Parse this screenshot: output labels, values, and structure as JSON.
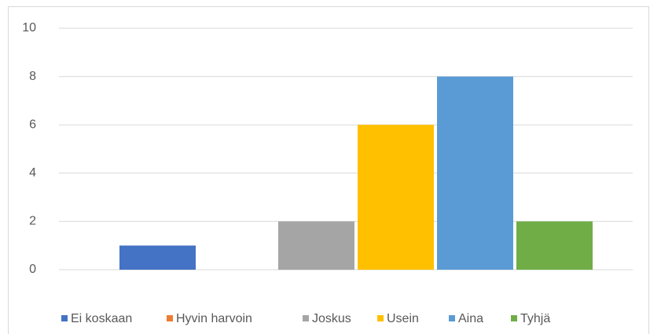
{
  "chart_data": {
    "type": "bar",
    "series": [
      {
        "name": "Ei koskaan",
        "color": "#4472c4",
        "values": [
          1
        ]
      },
      {
        "name": "Hyvin harvoin",
        "color": "#ed7d31",
        "values": [
          0
        ]
      },
      {
        "name": "Joskus",
        "color": "#a5a5a5",
        "values": [
          2
        ]
      },
      {
        "name": "Usein",
        "color": "#ffc000",
        "values": [
          6
        ]
      },
      {
        "name": "Aina",
        "color": "#5b9bd5",
        "values": [
          8
        ]
      },
      {
        "name": "Tyhjä",
        "color": "#70ad47",
        "values": [
          2
        ]
      }
    ],
    "ylim": [
      0,
      10
    ],
    "yticks": [
      0,
      2,
      4,
      6,
      8,
      10
    ],
    "grid": true,
    "legend": "bottom"
  }
}
